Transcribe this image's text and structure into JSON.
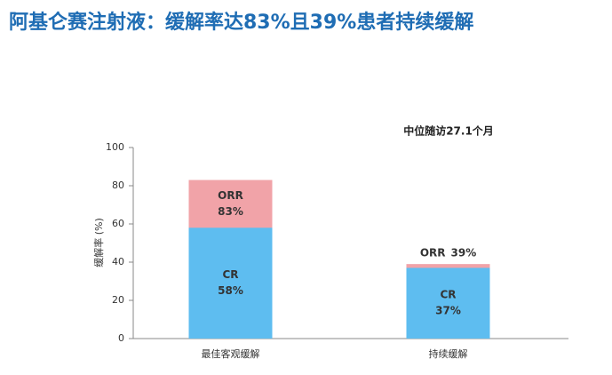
{
  "chart_data": {
    "type": "bar",
    "overlap": true,
    "title": "阿基仑赛注射液：缓解率达83%且39%患者持续缓解",
    "annotation": "中位随访27.1个月",
    "y_label": "缓解率 (%)",
    "categories": [
      "最佳客观缓解",
      "持续缓解"
    ],
    "series": [
      {
        "name": "ORR",
        "color": "#f1a3a8",
        "values": [
          83,
          39
        ],
        "value_labels": [
          "83%",
          "39%"
        ]
      },
      {
        "name": "CR",
        "color": "#5ebdf0",
        "values": [
          58,
          37
        ],
        "value_labels": [
          "58%",
          "37%"
        ]
      }
    ],
    "ylim": [
      0,
      100
    ],
    "yticks": [
      0,
      20,
      40,
      60,
      80,
      100
    ],
    "grid": false
  }
}
